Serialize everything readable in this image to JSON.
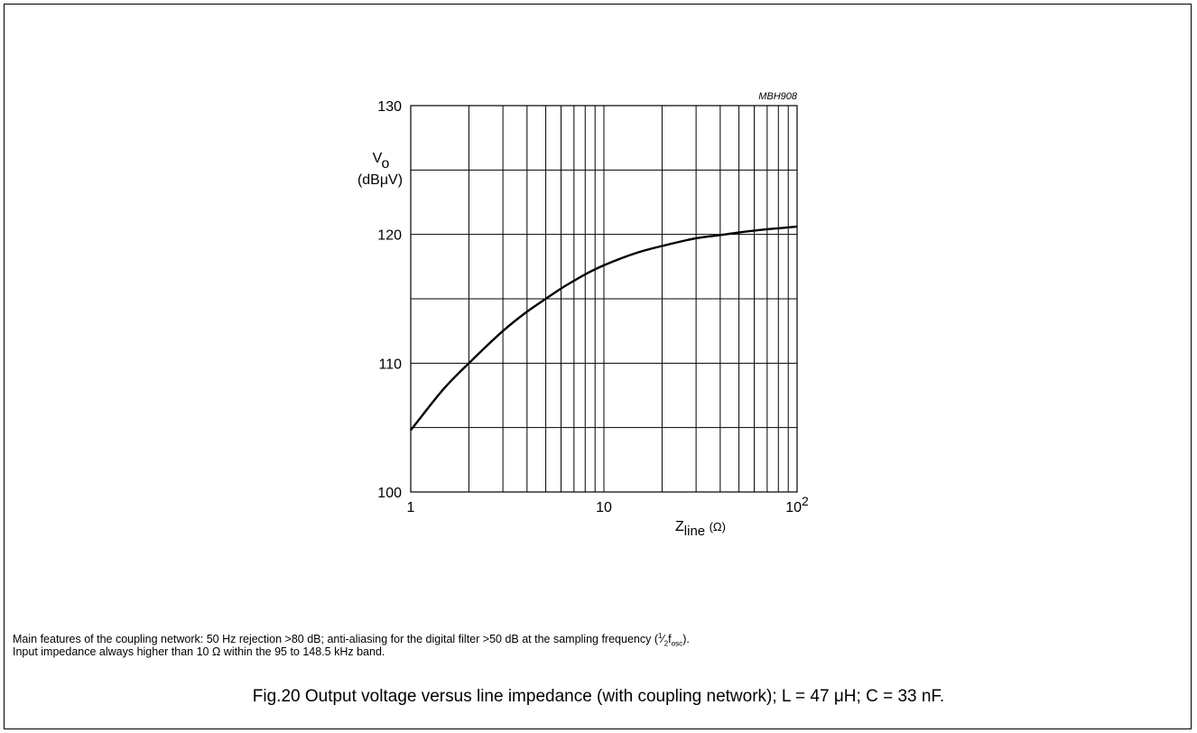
{
  "document": {
    "note_line1": "Main features of the coupling network: 50 Hz rejection >80 dB; anti-aliasing for the digital filter >50 dB at the sampling frequency (",
    "note_half": "1",
    "note_half_den": "2",
    "note_f": "f",
    "note_osc": "osc",
    "note_end": ").",
    "note_line2": "Input impedance always higher than 10 Ω within the 95 to 148.5 kHz band.",
    "caption": "Fig.20  Output voltage versus line impedance (with coupling network); L = 47 μH; C = 33 nF."
  },
  "chart_data": {
    "type": "line",
    "code": "MBH908",
    "xscale": "log",
    "xlim": [
      1,
      100
    ],
    "ylim": [
      100,
      130
    ],
    "grid": true,
    "xlabel": "Z",
    "xlabel_sub": "line",
    "xlabel_unit": "(Ω)",
    "ylabel_main": "V",
    "ylabel_sub": "o",
    "ylabel_unit": "(dBμV)",
    "x_ticks": [
      {
        "value": 1,
        "label": "1",
        "sup": ""
      },
      {
        "value": 10,
        "label": "10",
        "sup": ""
      },
      {
        "value": 100,
        "label": "10",
        "sup": "2"
      }
    ],
    "y_ticks": [
      100,
      110,
      120,
      130
    ],
    "y_grid": [
      100,
      105,
      110,
      115,
      120,
      125,
      130
    ],
    "x_grid": [
      1,
      2,
      3,
      4,
      5,
      6,
      7,
      8,
      9,
      10,
      20,
      30,
      40,
      50,
      60,
      70,
      80,
      90,
      100
    ],
    "series": [
      {
        "x": [
          1,
          1.5,
          2,
          3,
          4,
          5,
          6,
          7,
          8,
          10,
          15,
          20,
          30,
          40,
          50,
          70,
          100
        ],
        "y": [
          104.8,
          108.1,
          110.0,
          112.5,
          114.0,
          115.0,
          115.8,
          116.4,
          116.9,
          117.6,
          118.6,
          119.1,
          119.7,
          119.95,
          120.15,
          120.4,
          120.6
        ]
      }
    ]
  }
}
